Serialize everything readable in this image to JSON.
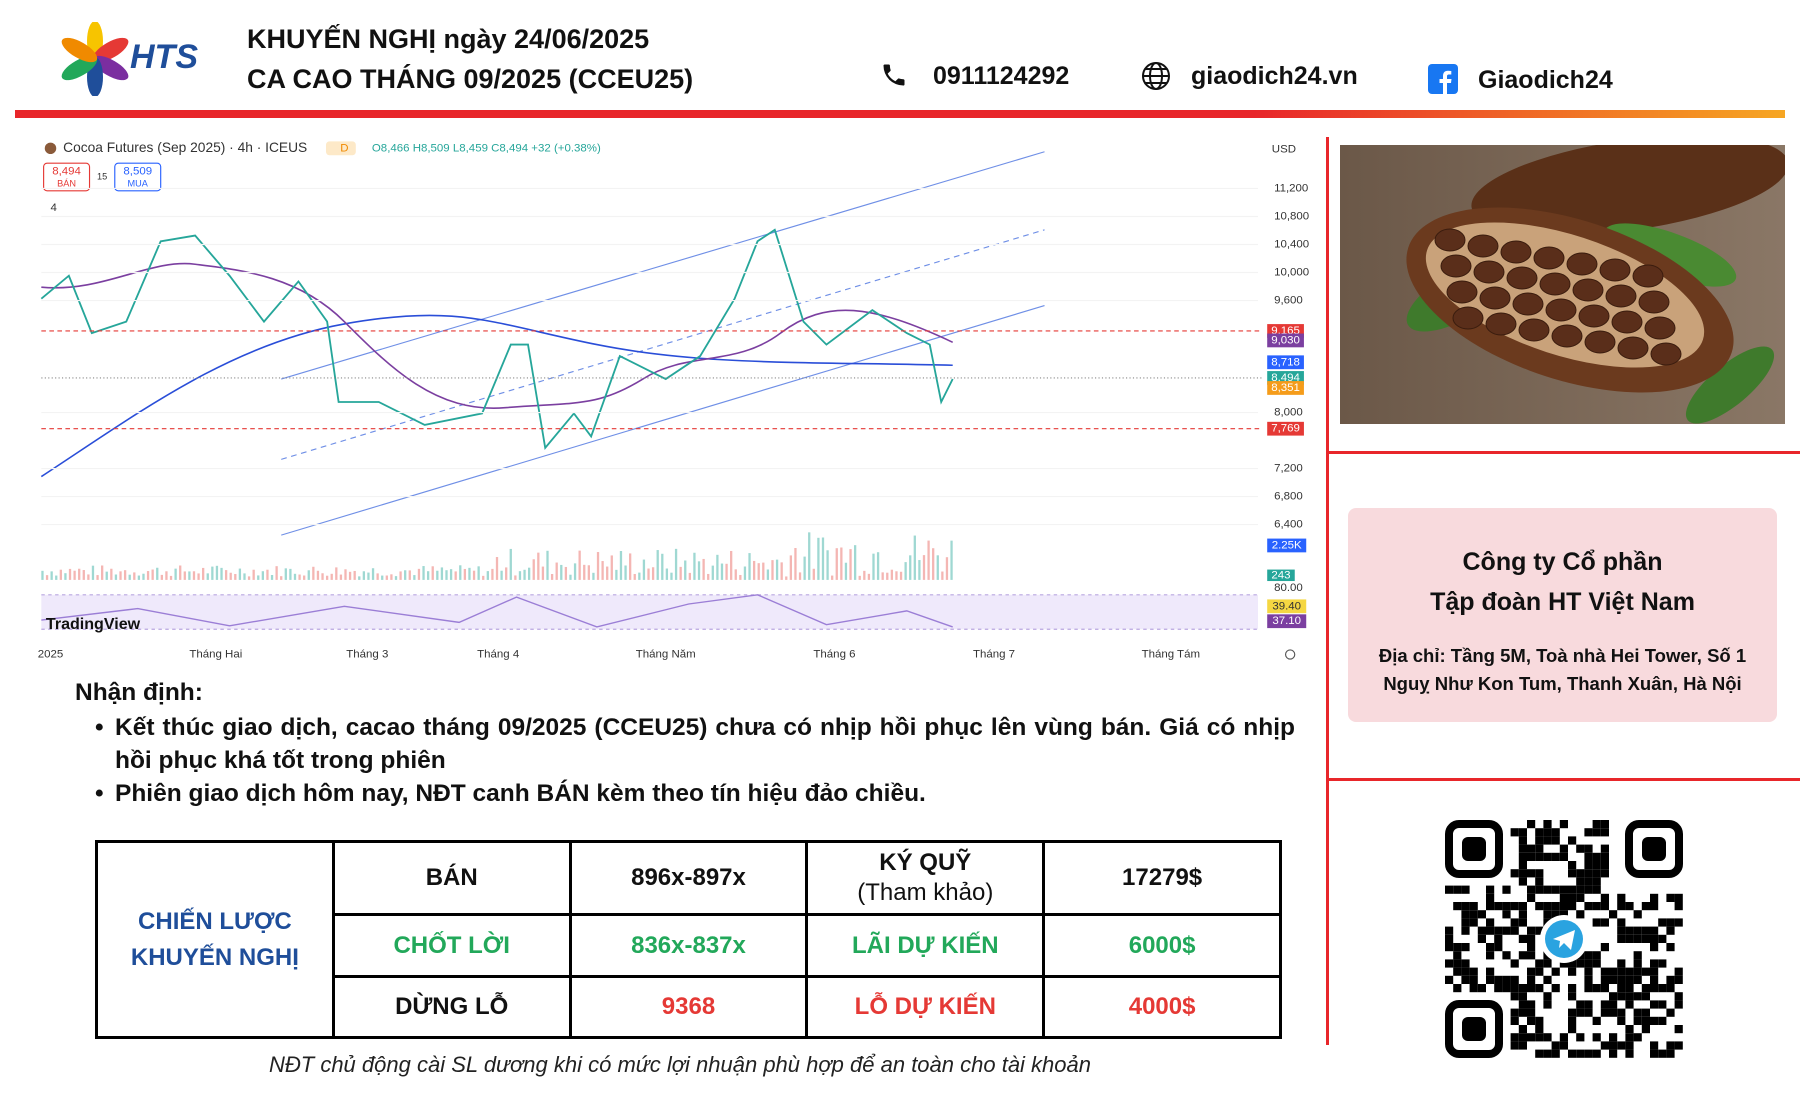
{
  "header": {
    "logo_text": "HTS",
    "title_line1": "KHUYẾN NGHỊ ngày 24/06/2025",
    "title_line2": "CA CAO THÁNG 09/2025 (CCEU25)",
    "phone": "0911124292",
    "website": "giaodich24.vn",
    "facebook": "Giaodich24"
  },
  "chart": {
    "symbol": "Cocoa Futures (Sep 2025) · 4h · ICEUS",
    "interval_badge": "D",
    "ohlc": "O8,466 H8,509 L8,459 C8,494 +32 (+0.38%)",
    "sell_price": "8,494",
    "sell_label": "BÁN",
    "spread": "15",
    "buy_price": "8,509",
    "buy_label": "MUA",
    "indicator_count": "4",
    "currency": "USD",
    "price_labels": [
      {
        "value": 11200,
        "label": "11,200"
      },
      {
        "value": 10800,
        "label": "10,800"
      },
      {
        "value": 10400,
        "label": "10,400"
      },
      {
        "value": 10000,
        "label": "10,000"
      },
      {
        "value": 9600,
        "label": "9,600"
      },
      {
        "value": 8000,
        "label": "8,000"
      },
      {
        "value": 7200,
        "label": "7,200"
      },
      {
        "value": 6800,
        "label": "6,800"
      },
      {
        "value": 6400,
        "label": "6,400"
      }
    ],
    "price_tags": [
      {
        "value": 9165,
        "label": "9,165",
        "color": "#e53935"
      },
      {
        "value": 9030,
        "label": "9,030",
        "color": "#7b3fa0"
      },
      {
        "value": 8718,
        "label": "8,718",
        "color": "#2962ff"
      },
      {
        "value": 8494,
        "label": "8,494",
        "color": "#26a69a"
      },
      {
        "value": 8351,
        "label": "8,351",
        "color": "#f59c1a"
      },
      {
        "value": 7769,
        "label": "7,769",
        "color": "#e53935"
      }
    ],
    "volume_tag": "2.25K",
    "volume_tag2": "243",
    "rsi_top": "80.00",
    "rsi_tag1": "39.40",
    "rsi_tag2": "37.10",
    "months": [
      "2025",
      "Tháng Hai",
      "Tháng 3",
      "Tháng 4",
      "Tháng Năm",
      "Tháng 6",
      "Tháng 7",
      "Tháng Tám"
    ],
    "watermark": "TradingView"
  },
  "analysis": {
    "heading": "Nhận định:",
    "bullets": [
      "Kết thúc giao dịch, cacao tháng 09/2025 (CCEU25) chưa có nhịp hồi phục lên vùng bán. Giá có nhịp hồi phục khá tốt trong phiên",
      "Phiên giao dịch hôm nay, NĐT canh BÁN kèm theo tín hiệu đảo chiều."
    ]
  },
  "table": {
    "strategy_line1": "CHIẾN LƯỢC",
    "strategy_line2": "KHUYẾN NGHỊ",
    "rows": [
      [
        "BÁN",
        "896x-897x",
        "KÝ QUỸ",
        "17279$"
      ],
      [
        "CHỐT LỜI",
        "836x-837x",
        "LÃI DỰ KIẾN",
        "6000$"
      ],
      [
        "DỪNG LỖ",
        "9368",
        "LỖ DỰ KIẾN",
        "4000$"
      ]
    ],
    "margin_note": "(Tham khảo)"
  },
  "footnote": "NĐT chủ động cài SL dương khi có mức lợi nhuận phù hợp để an toàn cho tài khoản",
  "company": {
    "name_line1": "Công ty Cổ phần",
    "name_line2": "Tập đoàn HT Việt Nam",
    "address": "Địa chỉ: Tầng 5M, Toà nhà Hei Tower, Số 1 Nguỵ Như Kon Tum, Thanh Xuân, Hà Nội"
  }
}
